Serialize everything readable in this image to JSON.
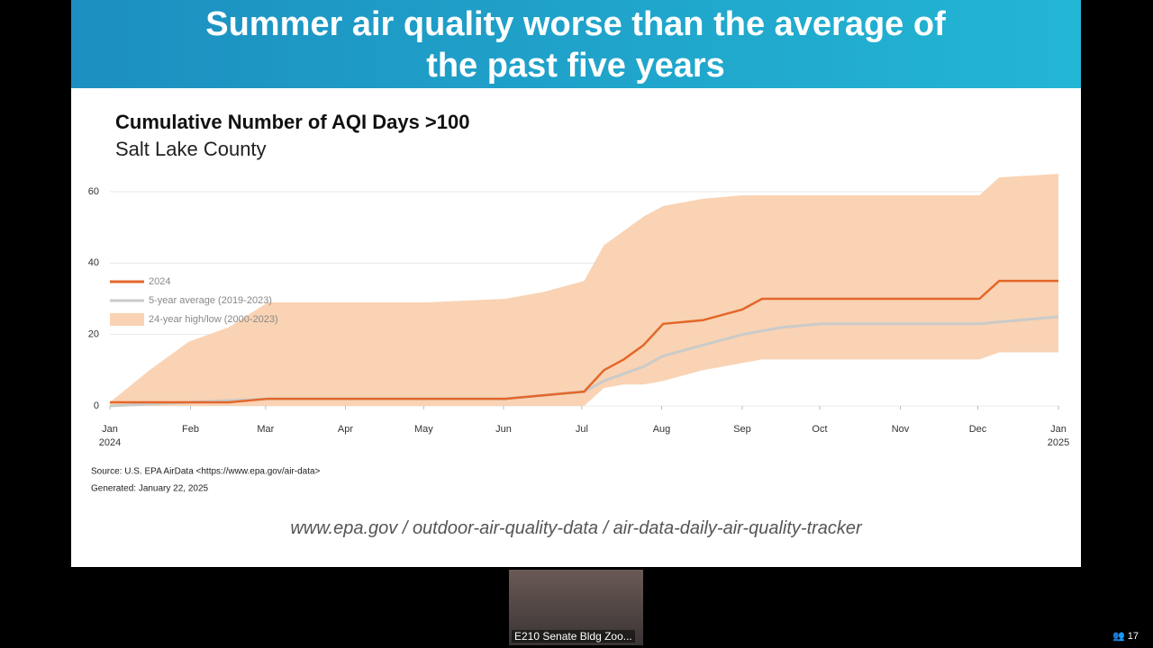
{
  "slide": {
    "title": "Summer air quality worse than the average of the past five years",
    "url": "www.epa.gov / outdoor-air-quality-data / air-data-daily-air-quality-tracker"
  },
  "chart_data": {
    "type": "line",
    "title": "Cumulative Number of AQI Days >100",
    "subtitle": "Salt Lake County",
    "source": "Source: U.S. EPA AirData <https://www.epa.gov/air-data>",
    "generated": "Generated:  January 22, 2025",
    "x": [
      0,
      0.5,
      1,
      1.5,
      2,
      3,
      4,
      5,
      5.5,
      6,
      6.25,
      6.5,
      6.75,
      7,
      7.5,
      8,
      8.25,
      8.5,
      9,
      10,
      11,
      11.25,
      12
    ],
    "series": [
      {
        "name": "24-year high/low (2000-2023)",
        "color": "#f9d3b4",
        "values": [
          1,
          10,
          18,
          22,
          29,
          29,
          29,
          30,
          32,
          35,
          45,
          49,
          53,
          56,
          58,
          59,
          59,
          59,
          59,
          59,
          59,
          64,
          65
        ],
        "low": [
          0,
          0,
          0,
          0,
          0,
          0,
          0,
          0,
          0,
          0,
          5,
          6,
          6,
          7,
          10,
          12,
          13,
          13,
          13,
          13,
          13,
          15,
          15
        ]
      },
      {
        "name": "5-year average (2019-2023)",
        "color": "#c9cbc9",
        "values": [
          0,
          0.5,
          1,
          1.5,
          2,
          2,
          2,
          2,
          3,
          4,
          7,
          9,
          11,
          14,
          17,
          20,
          21,
          22,
          23,
          23,
          23,
          23.5,
          25
        ]
      },
      {
        "name": "2024",
        "color": "#e4672a",
        "values": [
          1,
          1,
          1,
          1,
          2,
          2,
          2,
          2,
          3,
          4,
          10,
          13,
          17,
          23,
          24,
          27,
          30,
          30,
          30,
          30,
          30,
          35,
          35
        ]
      }
    ],
    "xlim": [
      0,
      12
    ],
    "xticks": [
      {
        "value": 0,
        "label": "Jan 2024"
      },
      {
        "value": 1.02,
        "label": "Feb"
      },
      {
        "value": 1.97,
        "label": "Mar"
      },
      {
        "value": 2.98,
        "label": "Apr"
      },
      {
        "value": 3.97,
        "label": "May"
      },
      {
        "value": 4.98,
        "label": "Jun"
      },
      {
        "value": 5.97,
        "label": "Jul"
      },
      {
        "value": 6.98,
        "label": "Aug"
      },
      {
        "value": 8,
        "label": "Sep"
      },
      {
        "value": 8.98,
        "label": "Oct"
      },
      {
        "value": 10,
        "label": "Nov"
      },
      {
        "value": 10.98,
        "label": "Dec"
      },
      {
        "value": 12,
        "label": "Jan 2025"
      }
    ],
    "ylim": [
      0,
      65
    ],
    "yticks": [
      0,
      20,
      40,
      60
    ],
    "grid": true
  },
  "meeting": {
    "tile_label": "E210 Senate Bldg Zoo...",
    "participants": 17
  }
}
